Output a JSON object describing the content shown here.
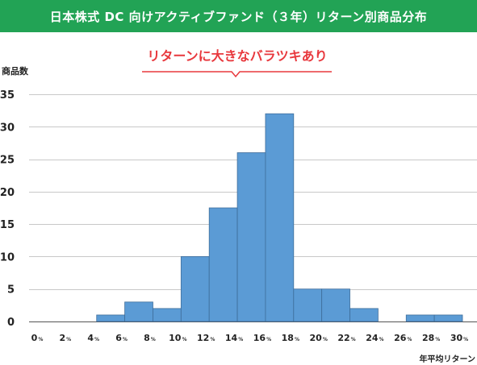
{
  "header": {
    "title": "日本株式 DC 向けアクティブファンド（３年）リターン別商品分布"
  },
  "callout": {
    "text": "リターンに大きなバラツキあり"
  },
  "colors": {
    "header_bg": "#22a355",
    "bar": "#5b9bd5",
    "callout": "#e8383d"
  },
  "chart_data": {
    "type": "bar",
    "ylabel": "商品数",
    "xlabel": "年平均リターン",
    "ylim": [
      0,
      35
    ],
    "yticks": [
      0,
      5,
      10,
      15,
      20,
      25,
      30,
      35
    ],
    "xlim": [
      0,
      30
    ],
    "xtick_values": [
      0,
      2,
      4,
      6,
      8,
      10,
      12,
      14,
      16,
      18,
      20,
      22,
      24,
      26,
      28,
      30
    ],
    "xtick_unit": "%",
    "bin_width": 2,
    "bins": [
      {
        "from": 2,
        "to": 4,
        "value": 0
      },
      {
        "from": 4,
        "to": 6,
        "value": 1
      },
      {
        "from": 6,
        "to": 8,
        "value": 3
      },
      {
        "from": 8,
        "to": 10,
        "value": 2
      },
      {
        "from": 10,
        "to": 12,
        "value": 10
      },
      {
        "from": 12,
        "to": 14,
        "value": 17.5
      },
      {
        "from": 14,
        "to": 16,
        "value": 26
      },
      {
        "from": 16,
        "to": 18,
        "value": 32
      },
      {
        "from": 18,
        "to": 20,
        "value": 5
      },
      {
        "from": 20,
        "to": 22,
        "value": 5
      },
      {
        "from": 22,
        "to": 24,
        "value": 2
      },
      {
        "from": 24,
        "to": 26,
        "value": 0
      },
      {
        "from": 26,
        "to": 28,
        "value": 1
      },
      {
        "from": 28,
        "to": 30,
        "value": 1
      }
    ]
  }
}
